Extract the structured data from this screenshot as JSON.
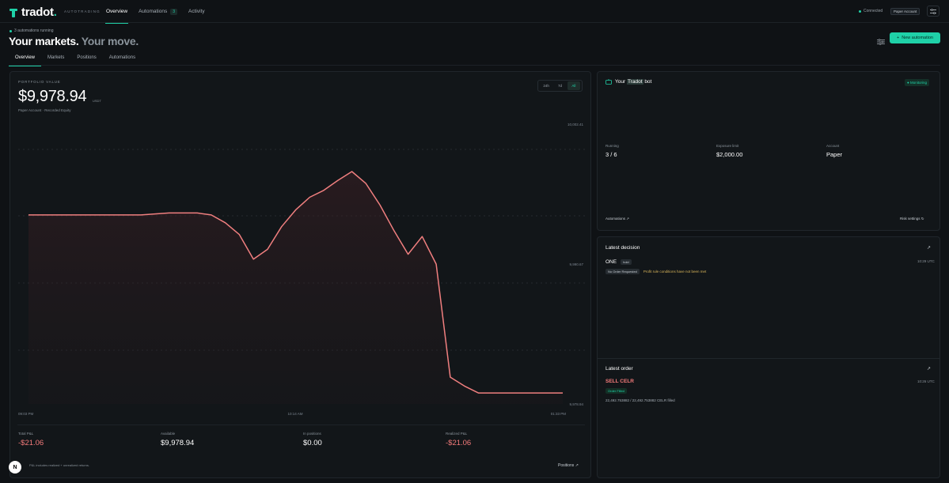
{
  "topnav": {
    "logo": "tradot",
    "logo_dot": ".",
    "subtitle": "AUTOTRADING",
    "links": [
      {
        "label": "Overview"
      },
      {
        "label": "Automations",
        "badge": "3"
      },
      {
        "label": "Activity"
      }
    ],
    "connection": "Connected",
    "account_pill": "Paper Account"
  },
  "header": {
    "running": "3 automations running",
    "title_main": "Your markets.",
    "title_muted": "Your move.",
    "new_button": "New automation",
    "tabs": [
      {
        "label": "Overview"
      },
      {
        "label": "Markets"
      },
      {
        "label": "Positions"
      },
      {
        "label": "Automations"
      }
    ]
  },
  "portfolio": {
    "label": "PORTFOLIO VALUE",
    "value": "$9,978.94",
    "unit": "USDT",
    "subtitle": "Paper Account · Recorded Equity",
    "ranges": [
      "24h",
      "7d",
      "All"
    ],
    "active_range": "All",
    "stats": [
      {
        "label": "Total P&L",
        "value": "-$21.06",
        "negative": true
      },
      {
        "label": "Available",
        "value": "$9,978.94",
        "negative": false
      },
      {
        "label": "In positions",
        "value": "$0.00",
        "negative": false
      },
      {
        "label": "Realized P&L",
        "value": "-$21.06",
        "negative": true
      }
    ],
    "footnote": "P&L includes realized + unrealized returns.",
    "positions_link": "Positions"
  },
  "chart_data": {
    "type": "line",
    "x_labels": [
      "09:03 PM",
      "10:14 AM",
      "01:33 PM"
    ],
    "y_labels": [
      "10,002.41",
      "9,990.67",
      "9,978.94"
    ],
    "ylim": [
      9978.94,
      10002.41
    ],
    "grid": true,
    "color": "#f07f7f",
    "values": [
      9998.0,
      9998.0,
      9998.0,
      9998.0,
      9998.0,
      9998.0,
      9998.0,
      9998.0,
      9998.0,
      9998.1,
      9998.2,
      9998.2,
      9998.2,
      9998.0,
      9997.2,
      9996.0,
      9993.5,
      9994.5,
      9996.8,
      9998.5,
      9999.8,
      10000.5,
      10001.5,
      10002.41,
      10001.2,
      9999.0,
      9996.4,
      9994.0,
      9995.8,
      9993.0,
      9981.5,
      9980.6,
      9979.9,
      9979.9,
      9979.9,
      9979.9,
      9979.9,
      9979.9,
      9979.9
    ]
  },
  "bot": {
    "title_prefix": "Your",
    "title_highlight": "Tradot",
    "title_suffix": "bot",
    "status": "Monitoring",
    "stats": [
      {
        "label": "Running",
        "value": "3 / 6"
      },
      {
        "label": "Exposure limit",
        "value": "$2,000.00"
      },
      {
        "label": "Account",
        "value": "Paper"
      }
    ],
    "automations_link": "Automations",
    "risk_link": "Risk settings"
  },
  "decision": {
    "title": "Latest decision",
    "symbol": "ONE",
    "action": "hold",
    "time": "10:29 UTC",
    "tag": "No Order Requested",
    "reason": "Profit rule conditions have not been met"
  },
  "order": {
    "title": "Latest order",
    "symbol": "SELL CELR",
    "status": "Order Filled",
    "time": "10:26 UTC",
    "fill": "22,492.753882 / 22,492.753882 CELR filled"
  }
}
